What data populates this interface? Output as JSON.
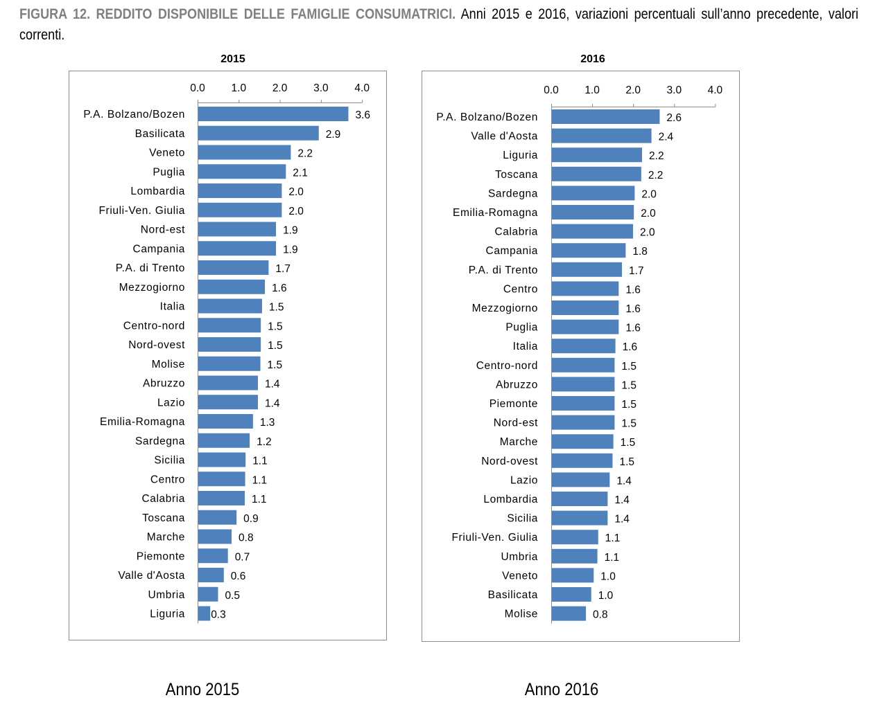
{
  "caption": {
    "bold": "FIGURA 12. REDDITO DISPONIBILE DELLE FAMIGLIE CONSUMATRICI.",
    "rest": " Anni 2015 e 2016, variazioni percentuali sull’anno precedente, valori correnti."
  },
  "colors": {
    "bar": "#4f81bd",
    "frame": "#8c8c8c",
    "axis": "#8c8c8c",
    "caption_bold": "#808080"
  },
  "footer": {
    "left": "Anno 2015",
    "right": "Anno 2016"
  },
  "chart_data": [
    {
      "type": "bar",
      "orientation": "horizontal",
      "title": "2015",
      "xlim": [
        0,
        4
      ],
      "ticks": [
        "0.0",
        "1.0",
        "2.0",
        "3.0",
        "4.0"
      ],
      "tick_position": "top",
      "grid": false,
      "categories": [
        "P.A. Bolzano/Bozen",
        "Basilicata",
        "Veneto",
        "Puglia",
        "Lombardia",
        "Friuli-Ven. Giulia",
        "Nord-est",
        "Campania",
        "P.A. di Trento",
        "Mezzogiorno",
        "Italia",
        "Centro-nord",
        "Nord-ovest",
        "Molise",
        "Abruzzo",
        "Lazio",
        "Emilia-Romagna",
        "Sardegna",
        "Sicilia",
        "Centro",
        "Calabria",
        "Toscana",
        "Marche",
        "Piemonte",
        "Valle d'Aosta",
        "Umbria",
        "Liguria"
      ],
      "values": [
        3.65,
        2.93,
        2.25,
        2.13,
        2.03,
        2.03,
        1.89,
        1.89,
        1.71,
        1.62,
        1.55,
        1.52,
        1.52,
        1.51,
        1.45,
        1.45,
        1.33,
        1.25,
        1.15,
        1.14,
        1.13,
        0.93,
        0.81,
        0.72,
        0.62,
        0.48,
        0.29
      ],
      "data_labels": [
        "3.6",
        "2.9",
        "2.2",
        "2.1",
        "2.0",
        "2.0",
        "1.9",
        "1.9",
        "1.7",
        "1.6",
        "1.5",
        "1.5",
        "1.5",
        "1.5",
        "1.4",
        "1.4",
        "1.3",
        "1.2",
        "1.1",
        "1.1",
        "1.1",
        "0.9",
        "0.8",
        "0.7",
        "0.6",
        "0.5",
        "0.3"
      ]
    },
    {
      "type": "bar",
      "orientation": "horizontal",
      "title": "2016",
      "xlim": [
        0,
        4
      ],
      "ticks": [
        "0.0",
        "1.0",
        "2.0",
        "3.0",
        "4.0"
      ],
      "tick_position": "top",
      "grid": false,
      "categories": [
        "P.A. Bolzano/Bozen",
        "Valle d'Aosta",
        "Liguria",
        "Toscana",
        "Sardegna",
        "Emilia-Romagna",
        "Calabria",
        "Campania",
        "P.A. di Trento",
        "Centro",
        "Mezzogiorno",
        "Puglia",
        "Italia",
        "Centro-nord",
        "Abruzzo",
        "Piemonte",
        "Nord-est",
        "Marche",
        "Nord-ovest",
        "Lazio",
        "Lombardia",
        "Sicilia",
        "Friuli-Ven. Giulia",
        "Umbria",
        "Veneto",
        "Basilicata",
        "Molise"
      ],
      "values": [
        2.63,
        2.43,
        2.2,
        2.18,
        2.02,
        2.0,
        1.98,
        1.8,
        1.71,
        1.63,
        1.63,
        1.63,
        1.55,
        1.53,
        1.53,
        1.53,
        1.53,
        1.5,
        1.48,
        1.41,
        1.36,
        1.36,
        1.13,
        1.11,
        1.02,
        0.96,
        0.83
      ],
      "data_labels": [
        "2.6",
        "2.4",
        "2.2",
        "2.2",
        "2.0",
        "2.0",
        "2.0",
        "1.8",
        "1.7",
        "1.6",
        "1.6",
        "1.6",
        "1.6",
        "1.5",
        "1.5",
        "1.5",
        "1.5",
        "1.5",
        "1.5",
        "1.4",
        "1.4",
        "1.4",
        "1.1",
        "1.1",
        "1.0",
        "1.0",
        "0.8"
      ]
    }
  ]
}
